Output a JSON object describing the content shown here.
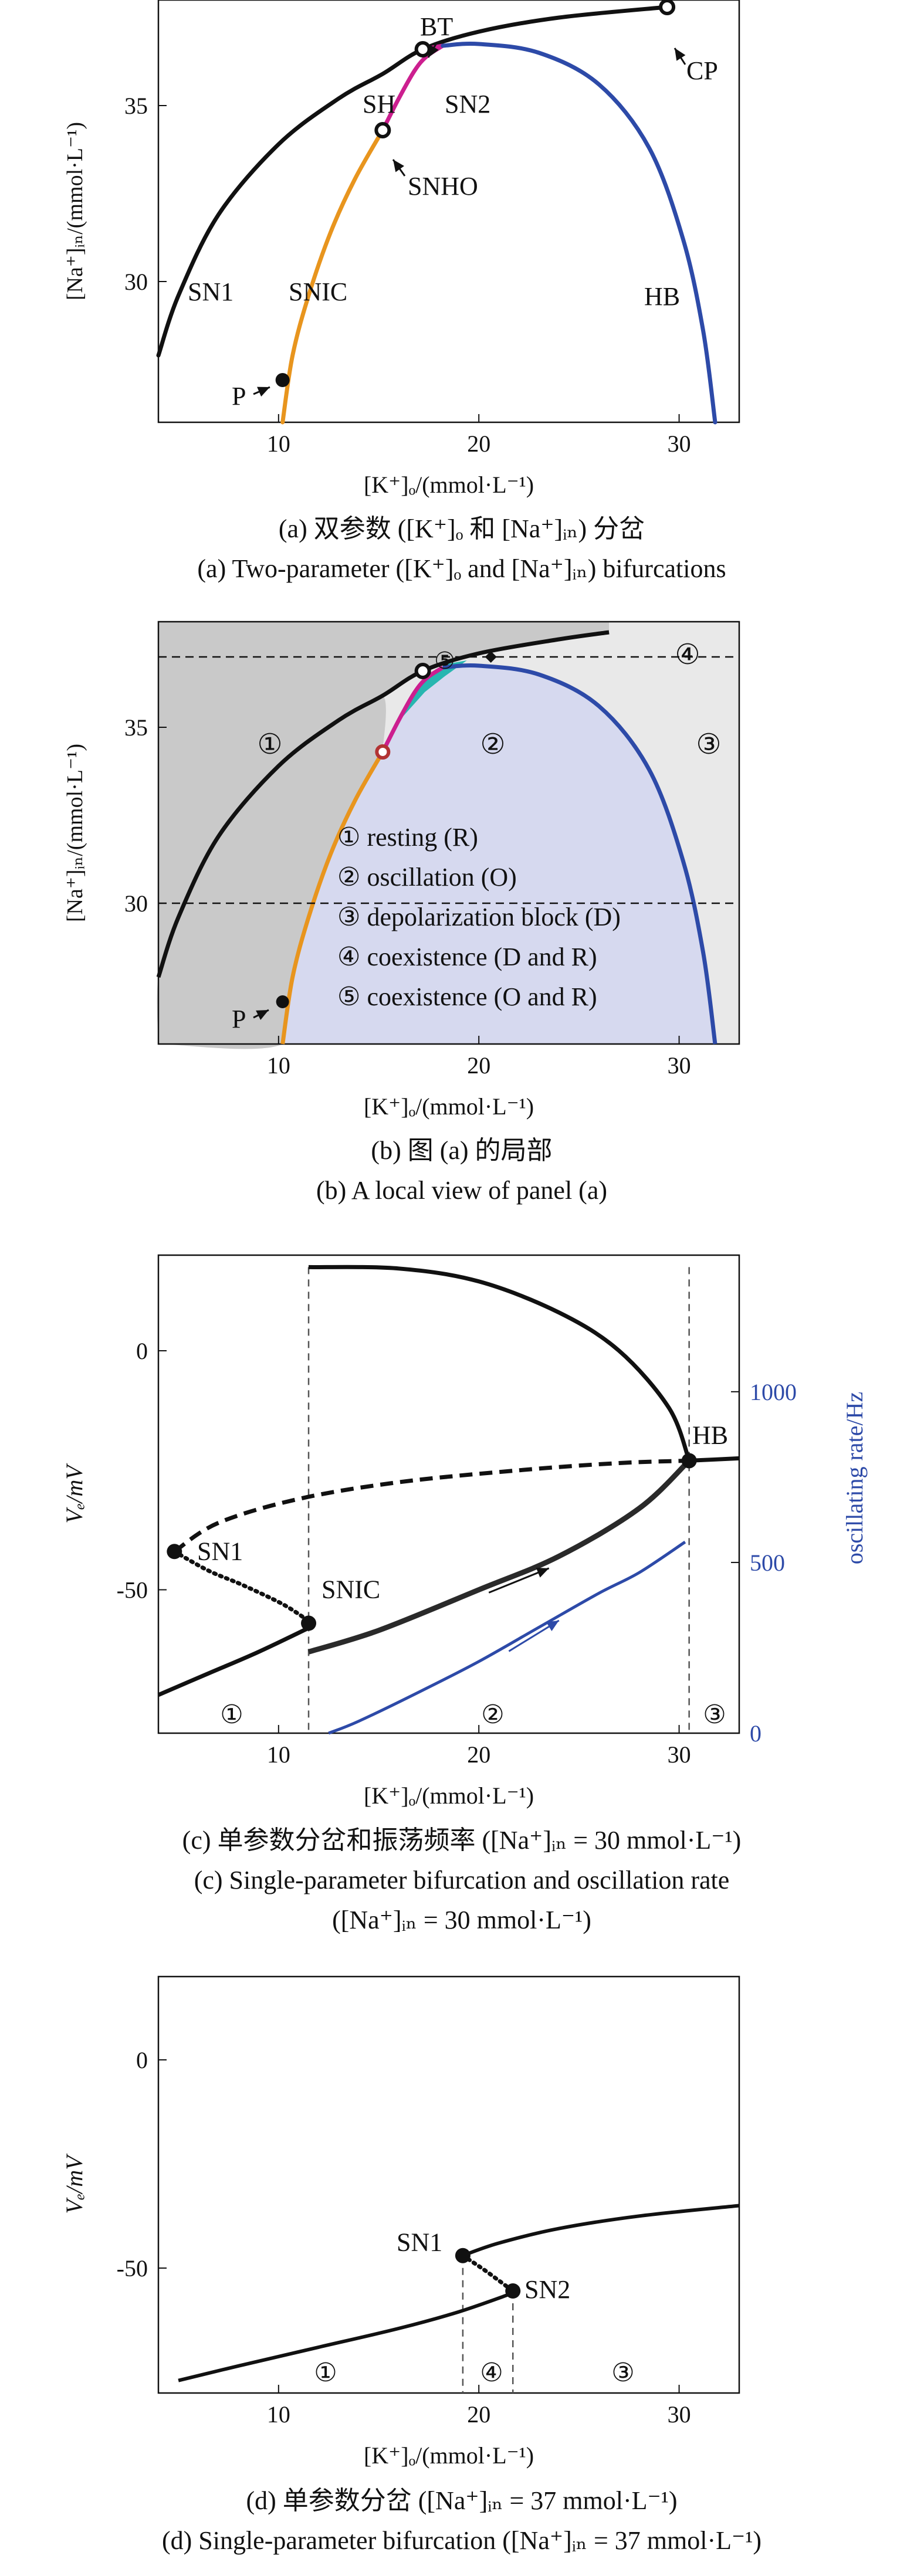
{
  "colors": {
    "black": "#111111",
    "orange": "#e8951e",
    "magenta": "#cc1f8f",
    "blue": "#2d4aa8",
    "panel_b_dark": "#c9c9c9",
    "panel_b_light": "#e9e9e9",
    "panel_b_oscillation": "#d6d9ef",
    "panel_b_coexist": "#27b6b0",
    "rate_blue": "#2d4aa8"
  },
  "panels": [
    {
      "id": "a",
      "caption_zh": "(a) 双参数 ([K⁺]ₒ 和 [Na⁺]ᵢₙ) 分岔",
      "caption_en": "(a) Two-parameter ([K⁺]ₒ and [Na⁺]ᵢₙ) bifurcations",
      "xlabel": "[K⁺]ₒ/(mmol·L⁻¹)",
      "ylabel": "[Na⁺]ᵢₙ/(mmol·L⁻¹)"
    },
    {
      "id": "b",
      "caption_zh": "(b) 图 (a) 的局部",
      "caption_en": "(b) A local view of panel (a)",
      "xlabel": "[K⁺]ₒ/(mmol·L⁻¹)",
      "ylabel": "[Na⁺]ᵢₙ/(mmol·L⁻¹)",
      "legend": [
        "① resting (R)",
        "② oscillation (O)",
        "③ depolarization block (D)",
        "④ coexistence (D and R)",
        "⑤ coexistence (O and R)"
      ]
    },
    {
      "id": "c",
      "caption_zh": "(c) 单参数分岔和振荡频率 ([Na⁺]ᵢₙ = 30 mmol·L⁻¹)",
      "caption_en": "(c) Single-parameter bifurcation and oscillation rate",
      "caption_en2": "([Na⁺]ᵢₙ = 30 mmol·L⁻¹)",
      "xlabel": "[K⁺]ₒ/(mmol·L⁻¹)",
      "ylabel": "Vₑ/mV",
      "ylabel_right": "oscillating rate/Hz"
    },
    {
      "id": "d",
      "caption_zh": "(d) 单参数分岔 ([Na⁺]ᵢₙ = 37 mmol·L⁻¹)",
      "caption_en": "(d) Single-parameter bifurcation ([Na⁺]ᵢₙ = 37 mmol·L⁻¹)",
      "xlabel": "[K⁺]ₒ/(mmol·L⁻¹)",
      "ylabel": "Vₑ/mV"
    }
  ],
  "chart_data": [
    {
      "type": "line",
      "panel": "a",
      "xlim": [
        4,
        33
      ],
      "ylim": [
        26,
        38
      ],
      "x_ticks": [
        10,
        20,
        30
      ],
      "y_ticks": [
        30,
        35
      ],
      "series": [
        {
          "name": "SN1",
          "color": "black",
          "points": [
            [
              4,
              27.9
            ],
            [
              5,
              29.6
            ],
            [
              7,
              31.9
            ],
            [
              10,
              33.9
            ],
            [
              13,
              35.2
            ],
            [
              15.2,
              35.9
            ],
            [
              17.2,
              36.6
            ],
            [
              20,
              37.1
            ],
            [
              24,
              37.5
            ],
            [
              29.4,
              37.8
            ]
          ]
        },
        {
          "name": "SNIC",
          "color": "orange",
          "points": [
            [
              10.2,
              26.0
            ],
            [
              10.7,
              27.9
            ],
            [
              11.5,
              29.6
            ],
            [
              12.6,
              31.4
            ],
            [
              13.8,
              32.9
            ],
            [
              15.2,
              34.3
            ]
          ]
        },
        {
          "name": "SH",
          "color": "magenta",
          "points": [
            [
              15.2,
              34.3
            ],
            [
              16.0,
              35.2
            ],
            [
              16.8,
              36.0
            ],
            [
              17.4,
              36.4
            ],
            [
              18.2,
              36.7
            ]
          ]
        },
        {
          "name": "SN2",
          "color": "magenta",
          "points": [
            [
              17.2,
              36.6
            ],
            [
              18.2,
              36.7
            ]
          ]
        },
        {
          "name": "HB",
          "color": "blue",
          "points": [
            [
              18.2,
              36.7
            ],
            [
              20,
              36.75
            ],
            [
              23,
              36.5
            ],
            [
              26,
              35.6
            ],
            [
              28.5,
              33.8
            ],
            [
              30.2,
              31.2
            ],
            [
              31.2,
              28.6
            ],
            [
              31.8,
              26.0
            ]
          ]
        }
      ],
      "points": [
        {
          "label": "BT",
          "x": 17.2,
          "y": 36.6
        },
        {
          "label": "CP",
          "x": 29.4,
          "y": 37.8
        },
        {
          "label": "SNHO",
          "x": 15.2,
          "y": 34.3
        },
        {
          "label": "P",
          "x": 10.2,
          "y": 27.2
        }
      ],
      "labels": [
        "SN1",
        "SNIC",
        "SH",
        "SN2",
        "HB",
        "BT",
        "CP",
        "SNHO",
        "P"
      ]
    },
    {
      "type": "area",
      "panel": "b",
      "xlim": [
        4,
        33
      ],
      "ylim": [
        26,
        38
      ],
      "x_ticks": [
        10,
        20,
        30
      ],
      "y_ticks": [
        30,
        35
      ],
      "dashed_y": [
        30,
        37
      ],
      "region_labels": [
        "①",
        "②",
        "③",
        "④",
        "⑤"
      ]
    },
    {
      "type": "line",
      "panel": "c",
      "xlim": [
        4,
        33
      ],
      "ylim": [
        -80,
        20
      ],
      "ylim_right": [
        0,
        1400
      ],
      "x_ticks": [
        10,
        20,
        30
      ],
      "y_ticks": [
        0,
        -50
      ],
      "y_ticks_right": [
        0,
        500,
        1000
      ],
      "dashed_x": [
        11.5,
        30.5
      ],
      "series": [
        {
          "name": "stable lower",
          "style": "solid",
          "points": [
            [
              4,
              -72
            ],
            [
              6.5,
              -67.5
            ],
            [
              9,
              -63
            ],
            [
              11.5,
              -58
            ]
          ]
        },
        {
          "name": "unstable SN1–SNIC",
          "style": "dotted",
          "points": [
            [
              4.8,
              -42
            ],
            [
              6.5,
              -46
            ],
            [
              8.2,
              -49
            ],
            [
              10.2,
              -53
            ],
            [
              11.5,
              -56.5
            ]
          ]
        },
        {
          "name": "unstable upper",
          "style": "dashed",
          "points": [
            [
              4.8,
              -42
            ],
            [
              7,
              -36
            ],
            [
              11,
              -31
            ],
            [
              16,
              -27.5
            ],
            [
              22,
              -25
            ],
            [
              27,
              -23.5
            ],
            [
              30.5,
              -23
            ]
          ]
        },
        {
          "name": "stable depolarized",
          "style": "solid",
          "points": [
            [
              30.5,
              -23
            ],
            [
              33,
              -22.5
            ]
          ]
        },
        {
          "name": "oscillation max",
          "style": "solid",
          "points": [
            [
              11.5,
              17.5
            ],
            [
              16,
              17.2
            ],
            [
              20,
              14.5
            ],
            [
              24,
              8
            ],
            [
              27,
              0
            ],
            [
              29.5,
              -12
            ],
            [
              30.5,
              -23
            ]
          ]
        },
        {
          "name": "oscillation min",
          "style": "solid",
          "points": [
            [
              11.5,
              -63
            ],
            [
              15,
              -58.5
            ],
            [
              20,
              -50
            ],
            [
              24,
              -43
            ],
            [
              28,
              -33
            ],
            [
              30.5,
              -23
            ]
          ]
        },
        {
          "name": "oscillating rate",
          "axis": "right",
          "style": "solid",
          "points": [
            [
              12.5,
              0
            ],
            [
              14,
              35
            ],
            [
              17,
              120
            ],
            [
              20,
              210
            ],
            [
              23,
              310
            ],
            [
              26,
              410
            ],
            [
              28,
              470
            ],
            [
              30.3,
              560
            ]
          ]
        }
      ],
      "points": [
        {
          "label": "SN1",
          "x": 4.8,
          "y": -42
        },
        {
          "label": "SNIC",
          "x": 11.5,
          "y": -57
        },
        {
          "label": "HB",
          "x": 30.5,
          "y": -23
        }
      ],
      "labels": [
        "SN1",
        "SNIC",
        "HB"
      ],
      "region_labels": [
        "①",
        "②",
        "③"
      ]
    },
    {
      "type": "line",
      "panel": "d",
      "xlim": [
        4,
        33
      ],
      "ylim": [
        -80,
        20
      ],
      "x_ticks": [
        10,
        20,
        30
      ],
      "y_ticks": [
        0,
        -50
      ],
      "dashed_x": [
        19.2,
        21.7
      ],
      "series": [
        {
          "name": "lower stable",
          "style": "solid",
          "points": [
            [
              5,
              -77
            ],
            [
              8,
              -73.5
            ],
            [
              12,
              -69
            ],
            [
              16,
              -64.5
            ],
            [
              19,
              -60.5
            ],
            [
              21.7,
              -56
            ]
          ]
        },
        {
          "name": "unstable",
          "style": "dotted",
          "points": [
            [
              19.2,
              -47
            ],
            [
              20.2,
              -50.2
            ],
            [
              21.0,
              -53
            ],
            [
              21.7,
              -55.5
            ]
          ]
        },
        {
          "name": "upper stable",
          "style": "solid",
          "points": [
            [
              19.2,
              -47
            ],
            [
              21,
              -44
            ],
            [
              24,
              -40.5
            ],
            [
              28,
              -37.5
            ],
            [
              33,
              -35
            ]
          ]
        }
      ],
      "points": [
        {
          "label": "SN1",
          "x": 19.2,
          "y": -47
        },
        {
          "label": "SN2",
          "x": 21.7,
          "y": -55.5
        }
      ],
      "labels": [
        "SN1",
        "SN2"
      ],
      "region_labels": [
        "①",
        "④",
        "③"
      ]
    }
  ]
}
